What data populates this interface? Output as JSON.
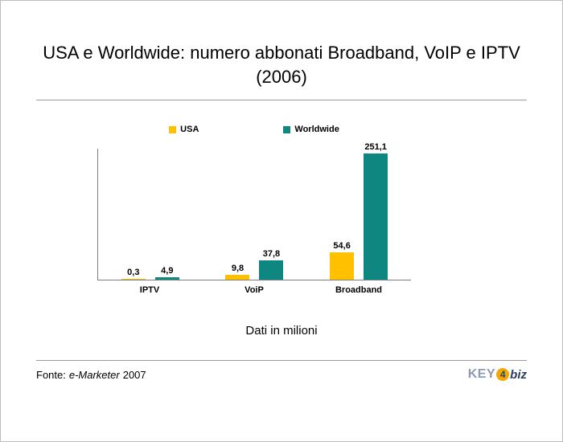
{
  "slide": {
    "title_line1": "USA e Worldwide: numero abbonati Broadband, VoIP e IPTV",
    "title_line2": "(2006)",
    "note": "Dati in milioni",
    "source_prefix": "Fonte:",
    "source_name": "e-Marketer",
    "source_year": "2007",
    "logo": {
      "key": "KEY",
      "four": "4",
      "biz": "biz"
    }
  },
  "chart_data": {
    "type": "bar",
    "title": "USA e Worldwide: numero abbonati Broadband, VoIP e IPTV (2006)",
    "categories": [
      "IPTV",
      "VoiP",
      "Broadband"
    ],
    "series": [
      {
        "name": "USA",
        "color": "#FFC000",
        "values": [
          0.3,
          9.8,
          54.6
        ]
      },
      {
        "name": "Worldwide",
        "color": "#0E8780",
        "values": [
          4.9,
          37.8,
          251.1
        ]
      }
    ],
    "value_labels": [
      [
        "0,3",
        "9,8",
        "54,6"
      ],
      [
        "4,9",
        "37,8",
        "251,1"
      ]
    ],
    "xlabel": "",
    "ylabel": "",
    "unit_note": "Dati in milioni",
    "ylim": [
      0,
      260
    ],
    "grid": false,
    "legend_position": "top"
  }
}
